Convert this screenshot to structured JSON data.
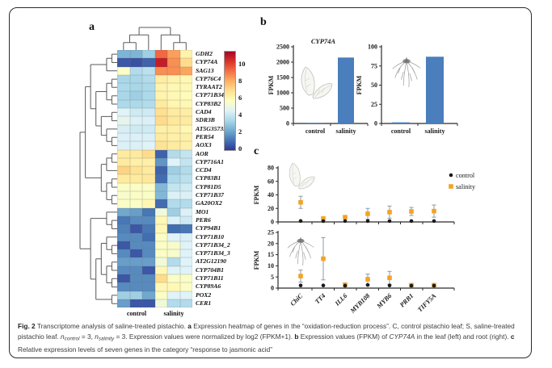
{
  "figure": {
    "panel_a_label": "a",
    "panel_b_label": "b",
    "panel_c_label": "c"
  },
  "colors": {
    "bar_blue": "#4a7ebc",
    "salinity_orange": "#f4a322",
    "control_black": "#1a1a1a",
    "error_bar": "#8d9aab",
    "dendrogram": "#5a5a5a"
  },
  "chart_data": [
    {
      "type": "heatmap",
      "genes": [
        "GDH2",
        "CYP74A",
        "SAG13",
        "CYP76C4",
        "TYRAAT2",
        "CYP71B34_1",
        "CYP83B2",
        "CAD4",
        "SDR3B",
        "AT5G35735",
        "PER54",
        "AOX3",
        "AOR",
        "CYP716A1",
        "CCD4",
        "CYP83B1",
        "CYP81D5",
        "CYP71B37",
        "GA20OX2",
        "MO1",
        "PER6",
        "CYP94B1",
        "CYP71B10",
        "CYP71B34_2",
        "CYP71B34_3",
        "AT2G12190",
        "CYP704B1",
        "CYP71B11",
        "CYP89A6",
        "POX2",
        "CER1"
      ],
      "col_groups": [
        "control",
        "salinity"
      ],
      "n_cols": 6,
      "values": [
        [
          2.5,
          2.5,
          3.2,
          9.3,
          8.3,
          6.2
        ],
        [
          0.6,
          0.5,
          0.8,
          10.8,
          8.6,
          7.0
        ],
        [
          5.6,
          3.6,
          3.8,
          8.6,
          8.6,
          8.2
        ],
        [
          3.4,
          3.4,
          3.6,
          6.4,
          6.2,
          6.0
        ],
        [
          3.5,
          3.4,
          3.5,
          6.2,
          6.0,
          6.0
        ],
        [
          3.4,
          3.2,
          3.5,
          6.2,
          6.0,
          5.9
        ],
        [
          3.5,
          3.5,
          3.6,
          6.5,
          6.1,
          6.0
        ],
        [
          4.6,
          4.2,
          4.2,
          6.9,
          6.5,
          6.4
        ],
        [
          4.8,
          4.5,
          4.5,
          7.0,
          6.6,
          6.5
        ],
        [
          4.4,
          4.2,
          4.2,
          6.3,
          6.3,
          6.0
        ],
        [
          4.5,
          4.5,
          4.5,
          6.5,
          6.3,
          6.3
        ],
        [
          4.5,
          4.5,
          4.6,
          6.8,
          6.5,
          6.3
        ],
        [
          6.5,
          6.5,
          7.0,
          0.8,
          3.6,
          4.0
        ],
        [
          6.5,
          6.3,
          6.3,
          1.8,
          4.6,
          4.0
        ],
        [
          7.2,
          6.8,
          6.5,
          0.8,
          3.2,
          3.6
        ],
        [
          6.5,
          6.5,
          6.6,
          1.0,
          3.5,
          3.8
        ],
        [
          5.6,
          5.6,
          5.6,
          2.6,
          4.0,
          4.2
        ],
        [
          5.5,
          5.6,
          5.6,
          2.6,
          4.5,
          4.5
        ],
        [
          5.6,
          5.6,
          6.0,
          1.0,
          3.6,
          3.6
        ],
        [
          2.2,
          2.0,
          1.2,
          5.2,
          3.2,
          4.5
        ],
        [
          1.2,
          1.6,
          1.6,
          6.0,
          4.5,
          4.2
        ],
        [
          1.4,
          0.6,
          1.2,
          6.0,
          1.0,
          1.2
        ],
        [
          1.6,
          1.6,
          1.0,
          5.6,
          4.6,
          4.5
        ],
        [
          0.6,
          1.6,
          1.6,
          5.6,
          5.5,
          4.6
        ],
        [
          1.6,
          0.6,
          1.6,
          5.6,
          5.5,
          4.6
        ],
        [
          2.0,
          2.0,
          2.0,
          5.2,
          3.6,
          4.6
        ],
        [
          1.6,
          1.6,
          0.6,
          6.0,
          4.6,
          4.6
        ],
        [
          0.6,
          1.6,
          1.6,
          7.0,
          5.6,
          5.6
        ],
        [
          1.6,
          1.6,
          1.6,
          6.0,
          6.0,
          5.6
        ],
        [
          3.2,
          3.2,
          2.2,
          5.6,
          4.6,
          4.6
        ],
        [
          2.0,
          0.6,
          0.6,
          5.2,
          3.6,
          3.6
        ]
      ],
      "vmin": 0,
      "vmax": 11.5,
      "colorbar_top_value": 11.43,
      "colormap": [
        "#313695",
        "#4575b4",
        "#74add1",
        "#abd9e9",
        "#e0f3f8",
        "#ffffbf",
        "#fee090",
        "#fdae61",
        "#f46d43",
        "#d73027",
        "#a50026"
      ],
      "colorbar_ticks": [
        10,
        8,
        6,
        4,
        2,
        0
      ],
      "row_tree": [
        [
          [
            [
              [
                0,
                1
              ],
              2
            ],
            [
              [
                [
                  3,
                  4
                ],
                [
                  5,
                  6
                ]
              ],
              [
                [
                  7,
                  8
                ],
                [
                  9,
                  [
                    10,
                    11
                  ]
                ]
              ]
            ]
          ],
          [
            [
              [
                12,
                13
              ],
              14
            ],
            [
              [
                15,
                16
              ],
              [
                17,
                18
              ]
            ]
          ]
        ],
        [
          [
            19,
            [
              20,
              21
            ]
          ],
          [
            [
              [
                22,
                [
                  23,
                  24
                ]
              ],
              [
                [
                  25,
                  26
                ],
                [
                  27,
                  28
                ]
              ]
            ],
            [
              29,
              30
            ]
          ]
        ]
      ],
      "col_tree": [
        [
          [
            0,
            1
          ],
          2
        ],
        [
          3,
          [
            4,
            5
          ]
        ]
      ]
    },
    {
      "type": "bar",
      "title": "CYP74A",
      "ylabel": "FPKM",
      "yticks": [
        0,
        500,
        1000,
        1500,
        2000,
        2500
      ],
      "ylim": [
        0,
        2500
      ],
      "categories": [
        "control",
        "salinity"
      ],
      "values": [
        20,
        2150
      ],
      "organ": "leaf"
    },
    {
      "type": "bar",
      "ylabel": "FPKM",
      "yticks": [
        0,
        25,
        50,
        75,
        100
      ],
      "ylim": [
        0,
        100
      ],
      "categories": [
        "control",
        "salinity"
      ],
      "values": [
        1.5,
        87
      ],
      "organ": "root"
    },
    {
      "type": "scatter",
      "ylabel": "FPKM",
      "yticks": [
        0,
        20,
        40,
        60,
        80
      ],
      "ylim": [
        0,
        80
      ],
      "categories": [
        "ChiC",
        "TT4",
        "ILL6",
        "MYB108",
        "MYB6",
        "PRB1",
        "TIFY5A"
      ],
      "show_x_labels": false,
      "organ": "leaf",
      "legend": {
        "control": "control",
        "salinity": "salinity"
      },
      "series": [
        {
          "name": "control",
          "values": [
            1.4,
            1.2,
            1.3,
            1.3,
            1.3,
            1.3,
            1.3
          ],
          "errors": [
            1,
            0.8,
            0.8,
            0.8,
            0.8,
            0.8,
            0.8
          ]
        },
        {
          "name": "salinity",
          "values": [
            29,
            5,
            7,
            12,
            14.5,
            15.5,
            16
          ],
          "errors": [
            9,
            2.5,
            2.5,
            8,
            9,
            6,
            9
          ]
        }
      ]
    },
    {
      "type": "scatter",
      "ylabel": "FPKM",
      "yticks": [
        0,
        5,
        10,
        15,
        20,
        25
      ],
      "ylim": [
        0,
        25
      ],
      "categories": [
        "ChiC",
        "TT4",
        "ILL6",
        "MYB108",
        "MYB6",
        "PRB1",
        "TIFY5A"
      ],
      "show_x_labels": true,
      "organ": "root",
      "series": [
        {
          "name": "control",
          "values": [
            1.2,
            1.2,
            1.1,
            1.4,
            1.2,
            1.1,
            1.1
          ],
          "errors": [
            0.5,
            0.5,
            0.4,
            0.5,
            0.4,
            0.4,
            0.4
          ]
        },
        {
          "name": "salinity",
          "values": [
            5.4,
            13.2,
            1.5,
            4.0,
            4.6,
            1.3,
            1.3
          ],
          "errors": [
            2.7,
            9.5,
            0.8,
            2.3,
            2.9,
            0.7,
            0.7
          ]
        }
      ]
    }
  ],
  "caption": {
    "segments": [
      {
        "t": "Fig. 2",
        "b": true
      },
      {
        "t": " Transcriptome analysis of saline-treated pistachio. "
      },
      {
        "t": "a",
        "b": true
      },
      {
        "t": " Expression heatmap of genes in the “oxidation-reduction process”. C, control pistachio leaf; S, saline-treated pistachio leaf. "
      },
      {
        "t": "n",
        "i": true
      },
      {
        "t": "control",
        "sub": true
      },
      {
        "t": " = 3, "
      },
      {
        "t": "n",
        "i": true
      },
      {
        "t": "salinity",
        "sub": true
      },
      {
        "t": " = 3. Expression values were normalized by log2 (FPKM+1). "
      },
      {
        "t": "b",
        "b": true
      },
      {
        "t": " Expression values (FPKM) of "
      },
      {
        "t": "CYP74A",
        "i": true
      },
      {
        "t": " in the leaf (left) and root (right). "
      },
      {
        "t": "c",
        "b": true
      },
      {
        "t": " Relative expression levels of seven genes in the category “response to jasmonic acid”"
      }
    ]
  }
}
